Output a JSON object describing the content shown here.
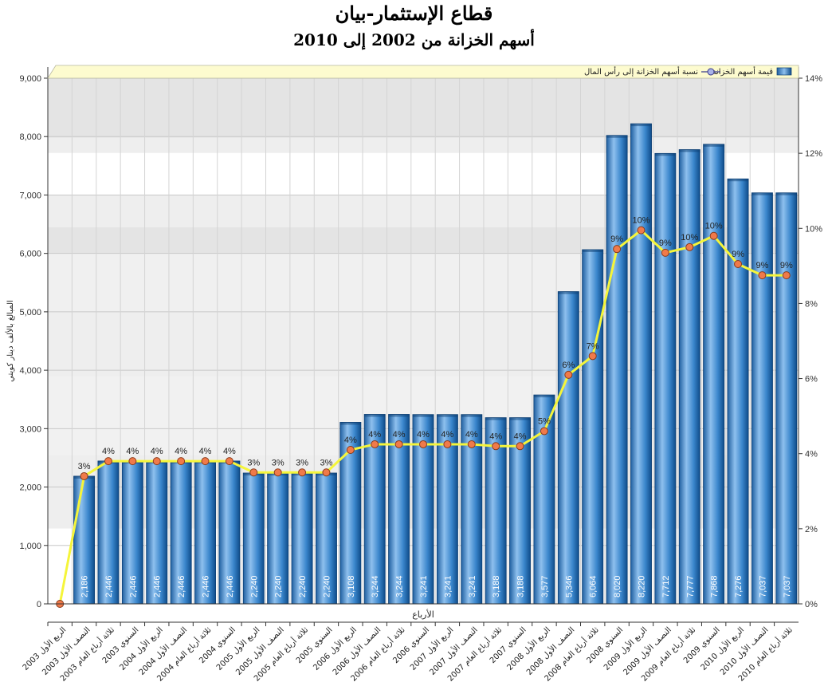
{
  "chart_data": {
    "type": "bar",
    "title": "قطاع الإستثمار-بيان",
    "subtitle": "أسهم الخزانة من 2002 إلى 2010",
    "xlabel": "الأرباع",
    "ylabel": "المبالغ بالألف دينار كويتي",
    "ylim": [
      0,
      9000
    ],
    "y_ticks": [
      "0",
      "1,000",
      "2,000",
      "3,000",
      "4,000",
      "5,000",
      "6,000",
      "7,000",
      "8,000",
      "9,000"
    ],
    "y2lim": [
      0,
      14
    ],
    "y2_ticks": [
      "0%",
      "2%",
      "4%",
      "6%",
      "8%",
      "10%",
      "12%",
      "14%"
    ],
    "grid": true,
    "legend_position": "top",
    "categories": [
      "الربع الأول 2003",
      "النصف الأول 2003",
      "ثلاثة أرباع العام 2003",
      "السنوي 2003",
      "الربع الأول 2004",
      "النصف الأول 2004",
      "ثلاثة أرباع العام 2004",
      "السنوي 2004",
      "الربع الأول 2005",
      "النصف الأول 2005",
      "ثلاثة أرباع العام 2005",
      "السنوي 2005",
      "الربع الأول 2006",
      "النصف الأول 2006",
      "ثلاثة أرباع العام 2006",
      "السنوي 2006",
      "الربع الأول 2007",
      "النصف الأول 2007",
      "ثلاثة أرباع العام 2007",
      "السنوي 2007",
      "الربع الأول 2008",
      "النصف الأول 2008",
      "ثلاثة أرباع العام 2008",
      "السنوي 2008",
      "الربع الأول 2009",
      "النصف الأول 2009",
      "ثلاثة أرباع العام 2009",
      "السنوي 2009",
      "الربع الأول 2010",
      "النصف الأول 2010",
      "ثلاثة أرباع العام 2010"
    ],
    "series": [
      {
        "name": "قيمة أسهم الخزانة",
        "type": "bar",
        "axis": "left",
        "color": "#2e7fc4",
        "values": [
          0,
          2186,
          2446,
          2446,
          2446,
          2446,
          2446,
          2446,
          2240,
          2240,
          2240,
          2240,
          3108,
          3244,
          3244,
          3241,
          3241,
          3241,
          3188,
          3188,
          3577,
          5346,
          6064,
          8020,
          8220,
          7712,
          7777,
          7868,
          7276,
          7037,
          7037
        ],
        "labels": [
          "",
          "2,186",
          "2,446",
          "2,446",
          "2,446",
          "2,446",
          "2,446",
          "2,446",
          "2,240",
          "2,240",
          "2,240",
          "2,240",
          "3,108",
          "3,244",
          "3,244",
          "3,241",
          "3,241",
          "3,241",
          "3,188",
          "3,188",
          "3,577",
          "5,346",
          "6,064",
          "8,020",
          "8,220",
          "7,712",
          "7,777",
          "7,868",
          "7,276",
          "7,037",
          "7,037"
        ]
      },
      {
        "name": "نسبة أسهم الخزانة إلى رأس المال",
        "type": "line",
        "axis": "right",
        "color": "#f5f53a",
        "values": [
          0,
          3.4,
          3.8,
          3.8,
          3.8,
          3.8,
          3.8,
          3.8,
          3.5,
          3.5,
          3.5,
          3.5,
          4.1,
          4.25,
          4.25,
          4.25,
          4.25,
          4.25,
          4.2,
          4.2,
          4.6,
          6.1,
          6.6,
          9.45,
          9.95,
          9.35,
          9.5,
          9.8,
          9.05,
          8.75,
          8.75
        ],
        "labels": [
          "",
          "3%",
          "4%",
          "4%",
          "4%",
          "4%",
          "4%",
          "4%",
          "3%",
          "3%",
          "3%",
          "3%",
          "4%",
          "4%",
          "4%",
          "4%",
          "4%",
          "4%",
          "4%",
          "4%",
          "5%",
          "6%",
          "7%",
          "9%",
          "10%",
          "9%",
          "10%",
          "10%",
          "9%",
          "9%",
          "9%"
        ]
      }
    ]
  }
}
